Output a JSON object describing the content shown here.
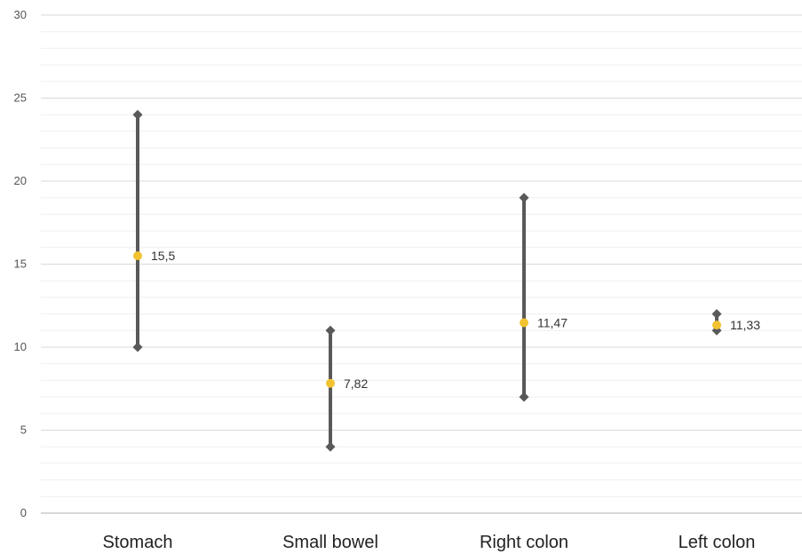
{
  "chart_data": {
    "type": "stock",
    "categories": [
      "Stomach",
      "Small bowel",
      "Right colon",
      "Left colon"
    ],
    "high": [
      24,
      11,
      19,
      12
    ],
    "low": [
      10,
      4,
      7,
      11
    ],
    "mean": [
      15.5,
      7.82,
      11.47,
      11.33
    ],
    "mean_labels": [
      "15,5",
      "7,82",
      "11,47",
      "11,33"
    ],
    "ylim": [
      0,
      30
    ],
    "y_ticks": [
      "0",
      "5",
      "10",
      "15",
      "20",
      "25",
      "30"
    ],
    "grid": true,
    "colors": {
      "range_line": "#595959",
      "endpoint_marker": "#595959",
      "mean_marker": "#F2C230",
      "major_grid": "#d9d9d9",
      "minor_grid": "#efefef",
      "axis": "#bfbfbf"
    }
  }
}
